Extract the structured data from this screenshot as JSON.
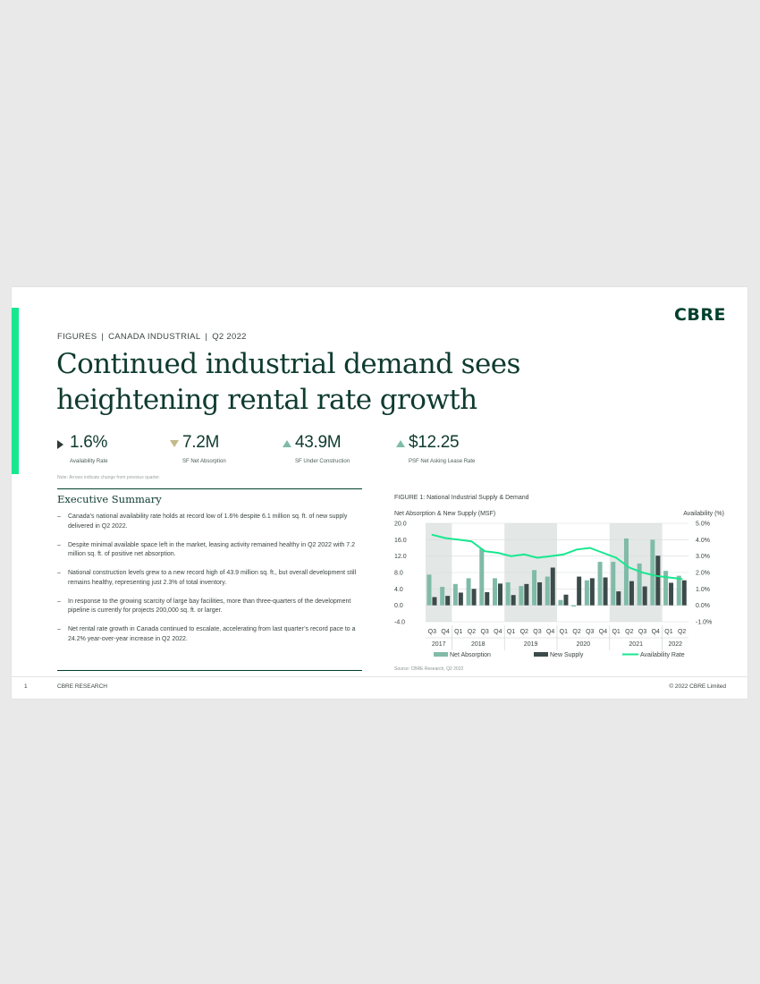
{
  "logo": "CBRE",
  "breadcrumb": [
    "FIGURES",
    "CANADA INDUSTRIAL",
    "Q2 2022"
  ],
  "title": "Continued industrial demand sees heightening rental rate growth",
  "stats": [
    {
      "value": "1.6%",
      "label": "Availability Rate",
      "arrow": "right"
    },
    {
      "value": "7.2M",
      "label": "SF Net Absorption",
      "arrow": "down"
    },
    {
      "value": "43.9M",
      "label": "SF Under Construction",
      "arrow": "up"
    },
    {
      "value": "$12.25",
      "label": "PSF Net Asking Lease Rate",
      "arrow": "up"
    }
  ],
  "note": "Note: Arrows indicate change from previous quarter.",
  "executive_summary": {
    "title": "Executive Summary",
    "bullets": [
      "Canada’s national availability rate holds at record low of 1.6% despite 6.1 million sq. ft. of new supply delivered in Q2 2022.",
      "Despite minimal available space left in the market, leasing activity remained healthy in Q2 2022 with 7.2 million sq. ft. of positive net absorption.",
      "National construction levels grew to a new record high of 43.9 million sq. ft., but overall development still remains healthy, representing just 2.3% of total inventory.",
      "In response to the growing scarcity of large bay facilities, more than three-quarters of the development pipeline is currently for projects 200,000 sq. ft. or larger.",
      "Net rental rate growth in Canada continued to escalate, accelerating from last quarter’s record pace to a 24.2% year-over-year increase in Q2 2022."
    ]
  },
  "figure": {
    "title": "FIGURE 1: National Industrial Supply & Demand",
    "source": "Source: CBRE Research, Q2 2022"
  },
  "chart_data": {
    "type": "bar",
    "categories": [
      "Q3",
      "Q4",
      "Q1",
      "Q2",
      "Q3",
      "Q4",
      "Q1",
      "Q2",
      "Q3",
      "Q4",
      "Q1",
      "Q2",
      "Q3",
      "Q4",
      "Q1",
      "Q2",
      "Q3",
      "Q4",
      "Q1",
      "Q2"
    ],
    "years": [
      {
        "label": "2017",
        "span": 2
      },
      {
        "label": "2018",
        "span": 4
      },
      {
        "label": "2019",
        "span": 4
      },
      {
        "label": "2020",
        "span": 4
      },
      {
        "label": "2021",
        "span": 4
      },
      {
        "label": "2022",
        "span": 2
      }
    ],
    "series": [
      {
        "name": "Net Absorption",
        "type": "bar",
        "axis": "left",
        "color": "#80bba8",
        "values": [
          7.5,
          4.5,
          5.2,
          6.6,
          13.8,
          6.6,
          5.6,
          4.7,
          8.6,
          7.0,
          1.3,
          -0.3,
          6.1,
          10.6,
          10.6,
          16.3,
          10.2,
          16.0,
          8.4,
          7.2
        ]
      },
      {
        "name": "New Supply",
        "type": "bar",
        "axis": "left",
        "color": "#3c4a4a",
        "values": [
          2.0,
          2.3,
          3.1,
          4.0,
          3.2,
          5.3,
          2.5,
          5.2,
          5.6,
          9.2,
          2.6,
          7.0,
          6.6,
          6.8,
          3.4,
          5.9,
          4.6,
          12.1,
          5.5,
          6.1
        ]
      },
      {
        "name": "Availability Rate",
        "type": "line",
        "axis": "right",
        "color": "#17e88f",
        "values": [
          4.3,
          4.1,
          4.0,
          3.9,
          3.3,
          3.2,
          3.0,
          3.1,
          2.9,
          3.0,
          3.1,
          3.4,
          3.5,
          3.2,
          2.9,
          2.3,
          2.0,
          1.8,
          1.7,
          1.6
        ]
      }
    ],
    "left_axis": {
      "label": "Net Absorption & New Supply (MSF)",
      "ticks": [
        "20.0",
        "16.0",
        "12.0",
        "8.0",
        "4.0",
        "0.0",
        "-4.0"
      ],
      "range": [
        -4,
        20
      ]
    },
    "right_axis": {
      "label": "Availability (%)",
      "ticks": [
        "5.0%",
        "4.0%",
        "3.0%",
        "2.0%",
        "1.0%",
        "0.0%",
        "-1.0%"
      ],
      "range": [
        -1,
        5
      ]
    },
    "legend_position": "bottom"
  },
  "footer": {
    "page": "1",
    "left": "CBRE RESEARCH",
    "right": "© 2022 CBRE Limited"
  }
}
